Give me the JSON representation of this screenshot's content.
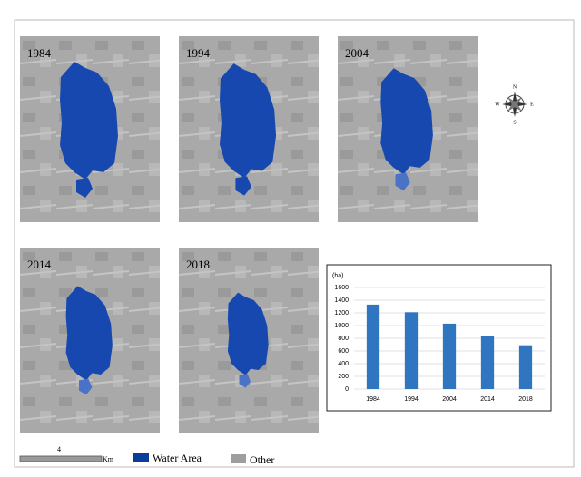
{
  "maps": [
    {
      "year": "1984"
    },
    {
      "year": "1994"
    },
    {
      "year": "2004"
    },
    {
      "year": "2014"
    },
    {
      "year": "2018"
    }
  ],
  "compass": {
    "n": "N",
    "s": "S",
    "e": "E",
    "w": "W"
  },
  "legend": {
    "scale_value": "4",
    "scale_unit": "Km",
    "water": "Water Area",
    "other": "Other"
  },
  "chart_data": {
    "type": "bar",
    "y_label": "(ha)",
    "categories": [
      "1984",
      "1994",
      "2004",
      "2014",
      "2018"
    ],
    "values": [
      1330,
      1210,
      1030,
      840,
      690
    ],
    "color": "#2f75c0",
    "ylim": [
      0,
      1600
    ],
    "yticks": [
      0,
      200,
      400,
      600,
      800,
      1000,
      1200,
      1400,
      1600
    ],
    "grid": true
  }
}
